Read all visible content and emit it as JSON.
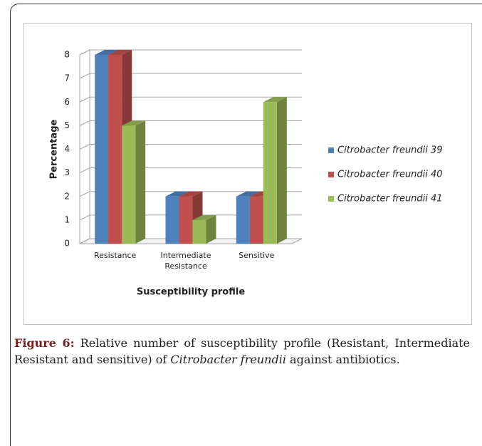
{
  "chart_data": {
    "type": "bar3d",
    "categories": [
      "Resistance",
      "Intermediate Resistance",
      "Sensitive"
    ],
    "series": [
      {
        "name": "Citrobacter freundii 39",
        "color": "#4f81bd",
        "values": [
          8,
          2,
          2
        ]
      },
      {
        "name": "Citrobacter freundii 40",
        "color": "#c0504d",
        "values": [
          8,
          2,
          2
        ]
      },
      {
        "name": "Citrobacter freundii 41",
        "color": "#9bbb59",
        "values": [
          5,
          1,
          6
        ]
      }
    ],
    "xlabel": "Susceptibility profile",
    "ylabel": "Percentage",
    "ylim": [
      0,
      8
    ],
    "yticks": [
      0,
      1,
      2,
      3,
      4,
      5,
      6,
      7,
      8
    ],
    "grid": true,
    "legend": "right"
  },
  "caption": {
    "label": "Figure 6:",
    "text1": "Relative number of susceptibility profile (Resistant, Intermediate Resistant and sensitive) of",
    "species": "Citrobacter freundii",
    "text2": "against antibiotics."
  }
}
